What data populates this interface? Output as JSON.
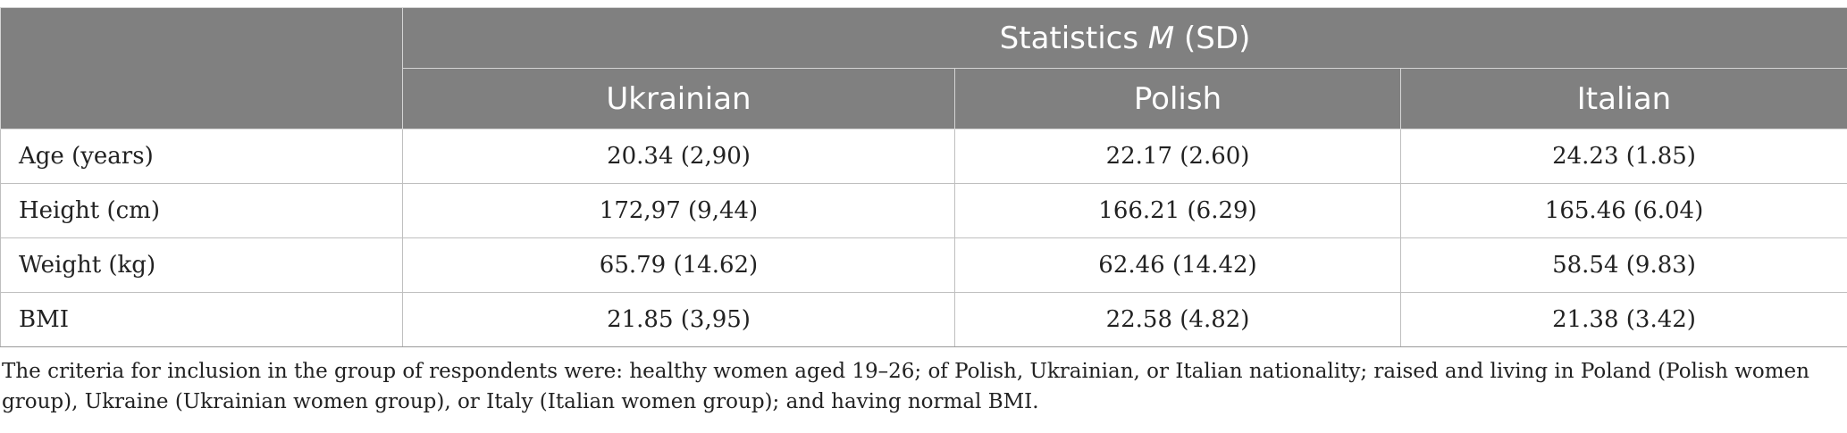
{
  "table": {
    "group_header_prefix": "Statistics ",
    "group_header_italic": "M",
    "group_header_suffix": " (SD)",
    "columns": [
      "Ukrainian",
      "Polish",
      "Italian"
    ],
    "rows": [
      {
        "label": "Age (years)",
        "values": [
          "20.34 (2,90)",
          "22.17 (2.60)",
          "24.23 (1.85)"
        ]
      },
      {
        "label": "Height (cm)",
        "values": [
          "172,97 (9,44)",
          "166.21 (6.29)",
          "165.46 (6.04)"
        ]
      },
      {
        "label": "Weight (kg)",
        "values": [
          "65.79 (14.62)",
          "62.46 (14.42)",
          "58.54 (9.83)"
        ]
      },
      {
        "label": "BMI",
        "values": [
          "21.85 (3,95)",
          "22.58 (4.82)",
          "21.38 (3.42)"
        ]
      }
    ]
  },
  "footnote": "The criteria for inclusion in the group of respondents were: healthy women aged 19–26; of Polish, Ukrainian, or Italian nationality; raised and living in Poland (Polish women group), Ukraine (Ukrainian women group), or Italy (Italian women group); and having normal BMI.",
  "colors": {
    "header_bg": "#808080",
    "header_text": "#ffffff",
    "body_text": "#222222"
  }
}
